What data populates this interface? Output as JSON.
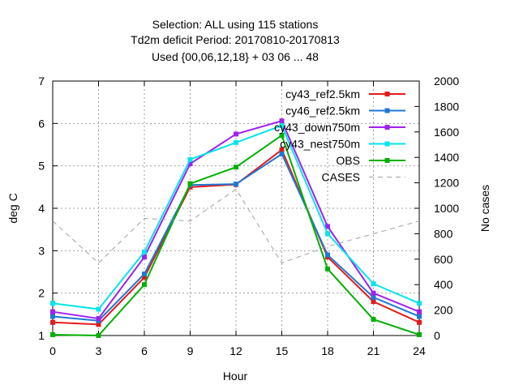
{
  "chart_data": {
    "type": "line",
    "title_lines": [
      "Selection: ALL using   115 stations",
      "Td2m deficit   Period: 20170810-20170813",
      "Used {00,06,12,18} + 03 06 ... 48"
    ],
    "xlabel": "Hour",
    "ylabel": "deg C",
    "y2label": "No cases",
    "x": [
      0,
      3,
      6,
      9,
      12,
      15,
      18,
      21,
      24
    ],
    "xlim": [
      0,
      24
    ],
    "ylim": [
      1,
      7
    ],
    "y2lim": [
      0,
      2000
    ],
    "xticks": [
      "0",
      "3",
      "6",
      "9",
      "12",
      "15",
      "18",
      "21",
      "24"
    ],
    "yticks": [
      "1",
      "2",
      "3",
      "4",
      "5",
      "6",
      "7"
    ],
    "y2ticks": [
      "0",
      "200",
      "400",
      "600",
      "800",
      "1000",
      "1200",
      "1400",
      "1600",
      "1800",
      "2000"
    ],
    "grid": true,
    "legend_position": "top-right",
    "series": [
      {
        "name": "cy43_ref2.5km",
        "color": "#e41a1c",
        "axis": "y",
        "values": [
          1.31,
          1.26,
          2.37,
          4.5,
          4.56,
          5.38,
          2.85,
          1.8,
          1.31
        ]
      },
      {
        "name": "cy46_ref2.5km",
        "color": "#1f78d4",
        "axis": "y",
        "values": [
          1.45,
          1.35,
          2.45,
          4.55,
          4.57,
          5.28,
          2.9,
          1.9,
          1.45
        ]
      },
      {
        "name": "cy43_down750m",
        "color": "#a020f0",
        "axis": "y",
        "values": [
          1.56,
          1.4,
          2.85,
          5.05,
          5.75,
          6.06,
          3.57,
          2.0,
          1.56
        ]
      },
      {
        "name": "cy43_nest750m",
        "color": "#00e5ee",
        "axis": "y",
        "values": [
          1.76,
          1.62,
          2.97,
          5.15,
          5.55,
          5.95,
          3.4,
          2.22,
          1.76
        ]
      },
      {
        "name": "OBS",
        "color": "#00b000",
        "axis": "y",
        "values": [
          1.02,
          1.0,
          2.2,
          4.58,
          4.97,
          5.72,
          2.57,
          1.38,
          1.02
        ]
      },
      {
        "name": "CASES",
        "color": "#a0a0a0",
        "axis": "y2",
        "dashed": true,
        "values": [
          900,
          570,
          920,
          900,
          1150,
          570,
          700,
          800,
          900
        ]
      }
    ]
  }
}
